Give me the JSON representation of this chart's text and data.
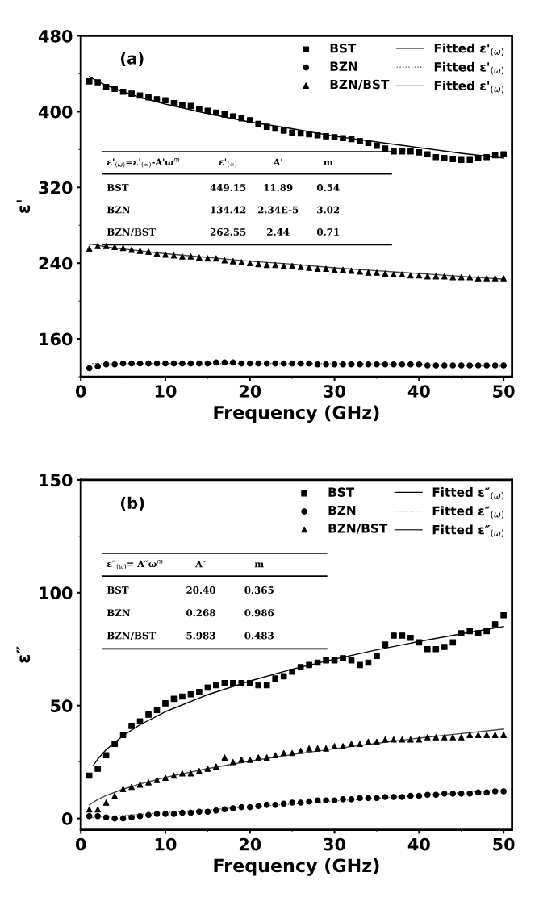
{
  "chart_data": [
    {
      "type": "scatter",
      "xlabel": "Frequency (GHz)",
      "ylabel": "ε'",
      "xlim": [
        0,
        51
      ],
      "xticks": [
        0,
        10,
        20,
        30,
        40,
        50
      ],
      "ylim": [
        120,
        480
      ],
      "yticks": [
        160,
        240,
        320,
        400,
        480
      ],
      "legend": "top right",
      "grid": false,
      "annotations": [
        "(a)",
        "ε'$_{(ω)}$=ε'$_{(∞)}$-A'ω$^{m}$\tε'$_{(∞)}$\tA'\tm",
        "BST\t449.15\t11.89\t0.54",
        "BZN\t134.42\t2.34E-5\t3.02",
        "BZN/BST\t262.55\t2.44\t0.71"
      ],
      "series": [
        {
          "name": "BST",
          "type": "scatter",
          "marker": "square",
          "color": "#000000",
          "x": [
            1,
            2,
            3,
            4,
            5,
            6,
            7,
            8,
            9,
            10,
            11,
            12,
            13,
            14,
            15,
            16,
            17,
            18,
            19,
            20,
            21,
            22,
            23,
            24,
            25,
            26,
            27,
            28,
            29,
            30,
            31,
            32,
            33,
            34,
            35,
            36,
            37,
            38,
            39,
            40,
            41,
            42,
            43,
            44,
            45,
            46,
            47,
            48,
            49,
            50
          ],
          "values": [
            432,
            431,
            426,
            424,
            421,
            419,
            417,
            415,
            413,
            412,
            409,
            407,
            406,
            403,
            401,
            399,
            397,
            395,
            393,
            391,
            387,
            384,
            382,
            380,
            378,
            377,
            376,
            375,
            374,
            373,
            372,
            371,
            369,
            367,
            364,
            361,
            358,
            358,
            358,
            357,
            355,
            352,
            351,
            350,
            349,
            349,
            351,
            352,
            354,
            355
          ]
        },
        {
          "name": "BZN",
          "type": "scatter",
          "marker": "circle",
          "color": "#000000",
          "x": [
            1,
            2,
            3,
            4,
            5,
            6,
            7,
            8,
            9,
            10,
            11,
            12,
            13,
            14,
            15,
            16,
            17,
            18,
            19,
            20,
            21,
            22,
            23,
            24,
            25,
            26,
            27,
            28,
            29,
            30,
            31,
            32,
            33,
            34,
            35,
            36,
            37,
            38,
            39,
            40,
            41,
            42,
            43,
            44,
            45,
            46,
            47,
            48,
            49,
            50
          ],
          "values": [
            129,
            131,
            133,
            133,
            134,
            134,
            134,
            134,
            134,
            134,
            134,
            134,
            134,
            134,
            134,
            135,
            135,
            135,
            134,
            134,
            134,
            134,
            134,
            134,
            134,
            134,
            134,
            133,
            133,
            133,
            133,
            133,
            133,
            133,
            133,
            133,
            133,
            133,
            133,
            133,
            132,
            132,
            132,
            132,
            132,
            132,
            132,
            132,
            132,
            132
          ]
        },
        {
          "name": "BZN/BST",
          "type": "scatter",
          "marker": "triangle",
          "color": "#000000",
          "x": [
            1,
            2,
            3,
            4,
            5,
            6,
            7,
            8,
            9,
            10,
            11,
            12,
            13,
            14,
            15,
            16,
            17,
            18,
            19,
            20,
            21,
            22,
            23,
            24,
            25,
            26,
            27,
            28,
            29,
            30,
            31,
            32,
            33,
            34,
            35,
            36,
            37,
            38,
            39,
            40,
            41,
            42,
            43,
            44,
            45,
            46,
            47,
            48,
            49,
            50
          ],
          "values": [
            255,
            258,
            258,
            257,
            256,
            254,
            253,
            252,
            250,
            249,
            248,
            247,
            247,
            246,
            245,
            245,
            243,
            242,
            241,
            240,
            239,
            238,
            238,
            237,
            237,
            236,
            235,
            234,
            234,
            233,
            233,
            232,
            231,
            230,
            230,
            229,
            228,
            228,
            227,
            227,
            226,
            226,
            226,
            225,
            225,
            225,
            224,
            224,
            224,
            224
          ]
        },
        {
          "name": "Fitted ε'$_{(ω)}$",
          "type": "line",
          "line_style": "solid",
          "color": "#000000",
          "x": [
            1,
            2,
            3,
            5,
            7,
            10,
            15,
            20,
            25,
            30,
            35,
            40,
            45,
            50
          ],
          "values": [
            437,
            432,
            428,
            421,
            415,
            408,
            398,
            389,
            382,
            374,
            368,
            362,
            356,
            351
          ]
        },
        {
          "name": "Fitted ε'$_{(ω)}$",
          "type": "line",
          "line_style": "dotted",
          "color": "#555555",
          "x": [
            1,
            10,
            20,
            30,
            40,
            50
          ],
          "values": [
            134,
            134,
            134,
            134,
            133,
            131
          ]
        },
        {
          "name": "Fitted ε'$_{(ω)}$",
          "type": "line",
          "line_style": "solid",
          "color": "#444444",
          "x": [
            1,
            2,
            3,
            5,
            7,
            10,
            15,
            20,
            25,
            30,
            35,
            40,
            45,
            50
          ],
          "values": [
            260,
            259,
            257,
            255,
            253,
            250,
            246,
            242,
            239,
            235,
            232,
            229,
            226,
            223
          ]
        }
      ]
    },
    {
      "type": "scatter",
      "xlabel": "Frequency (GHz)",
      "ylabel": "ε″",
      "xlim": [
        0,
        51
      ],
      "xticks": [
        0,
        10,
        20,
        30,
        40,
        50
      ],
      "ylim": [
        -5,
        150
      ],
      "yticks": [
        0,
        50,
        100,
        150
      ],
      "legend": "top right",
      "grid": false,
      "annotations": [
        "(b)",
        "ε″$_{(ω)}$= A″ω$^{m}$\tA″\tm",
        "BST\t20.40\t0.365",
        "BZN\t0.268\t0.986",
        "BZN/BST\t5.983\t0.483"
      ],
      "series": [
        {
          "name": "BST",
          "type": "scatter",
          "marker": "square",
          "color": "#000000",
          "x": [
            1,
            2,
            3,
            4,
            5,
            6,
            7,
            8,
            9,
            10,
            11,
            12,
            13,
            14,
            15,
            16,
            17,
            18,
            19,
            20,
            21,
            22,
            23,
            24,
            25,
            26,
            27,
            28,
            29,
            30,
            31,
            32,
            33,
            34,
            35,
            36,
            37,
            38,
            39,
            40,
            41,
            42,
            43,
            44,
            45,
            46,
            47,
            48,
            49,
            50
          ],
          "values": [
            19,
            22,
            28,
            33,
            37,
            41,
            43,
            46,
            48,
            51,
            53,
            54,
            55,
            56,
            58,
            59,
            60,
            60,
            60,
            60,
            59,
            59,
            62,
            63,
            65,
            67,
            68,
            69,
            70,
            70,
            71,
            70,
            68,
            69,
            72,
            77,
            81,
            81,
            80,
            78,
            75,
            75,
            76,
            78,
            82,
            83,
            82,
            83,
            86,
            90
          ]
        },
        {
          "name": "BZN",
          "type": "scatter",
          "marker": "circle",
          "color": "#000000",
          "x": [
            1,
            2,
            3,
            4,
            5,
            6,
            7,
            8,
            9,
            10,
            11,
            12,
            13,
            14,
            15,
            16,
            17,
            18,
            19,
            20,
            21,
            22,
            23,
            24,
            25,
            26,
            27,
            28,
            29,
            30,
            31,
            32,
            33,
            34,
            35,
            36,
            37,
            38,
            39,
            40,
            41,
            42,
            43,
            44,
            45,
            46,
            47,
            48,
            49,
            50
          ],
          "values": [
            1,
            1,
            0.5,
            0,
            0,
            0.5,
            1,
            1.5,
            2,
            2,
            2,
            2.5,
            2.5,
            3,
            3,
            3.5,
            4,
            4.5,
            5,
            5,
            5.5,
            6,
            6,
            6.5,
            7,
            7,
            7.5,
            8,
            8,
            8,
            8.5,
            8.5,
            9,
            9,
            9,
            9.5,
            9.5,
            9.5,
            10,
            10,
            10.5,
            10.5,
            11,
            11,
            11,
            11,
            11.5,
            11.5,
            12,
            12
          ]
        },
        {
          "name": "BZN/BST",
          "type": "scatter",
          "marker": "triangle",
          "color": "#000000",
          "x": [
            1,
            2,
            3,
            4,
            5,
            6,
            7,
            8,
            9,
            10,
            11,
            12,
            13,
            14,
            15,
            16,
            17,
            18,
            19,
            20,
            21,
            22,
            23,
            24,
            25,
            26,
            27,
            28,
            29,
            30,
            31,
            32,
            33,
            34,
            35,
            36,
            37,
            38,
            39,
            40,
            41,
            42,
            43,
            44,
            45,
            46,
            47,
            48,
            49,
            50
          ],
          "values": [
            4,
            4,
            7,
            10,
            13,
            14,
            15,
            16,
            17,
            18,
            19,
            20,
            20,
            21,
            22,
            23,
            27,
            25,
            26,
            26,
            27,
            27,
            28,
            29,
            29,
            30,
            31,
            31,
            31,
            32,
            32,
            33,
            33,
            34,
            34,
            35,
            35,
            35,
            35,
            35,
            36,
            36,
            36,
            36,
            36,
            37,
            37,
            37,
            37,
            37
          ]
        },
        {
          "name": "Fitted ε″$_{(ω)}$",
          "type": "line",
          "line_style": "solid",
          "color": "#000000",
          "x": [
            1.5,
            2,
            3,
            5,
            7,
            10,
            15,
            20,
            25,
            30,
            35,
            40,
            45,
            50
          ],
          "values": [
            23.6,
            26.3,
            30.5,
            36.7,
            41.5,
            47.3,
            54.8,
            60.9,
            66.1,
            70.6,
            74.7,
            78.4,
            81.8,
            85.0
          ]
        },
        {
          "name": "Fitted ε″$_{(ω)}$",
          "type": "line",
          "line_style": "dotted",
          "color": "#555555",
          "x": [
            1,
            10,
            20,
            30,
            40,
            50
          ],
          "values": [
            0.3,
            2.6,
            5.1,
            7.7,
            10.2,
            12.7
          ]
        },
        {
          "name": "Fitted ε″$_{(ω)}$",
          "type": "line",
          "line_style": "solid",
          "color": "#444444",
          "x": [
            1,
            2,
            3,
            5,
            7,
            10,
            15,
            20,
            25,
            30,
            35,
            40,
            45,
            50
          ],
          "values": [
            6.0,
            8.4,
            10.2,
            13.0,
            15.3,
            18.2,
            22.1,
            25.4,
            28.3,
            30.9,
            33.3,
            35.6,
            37.6,
            39.6
          ]
        }
      ]
    }
  ]
}
